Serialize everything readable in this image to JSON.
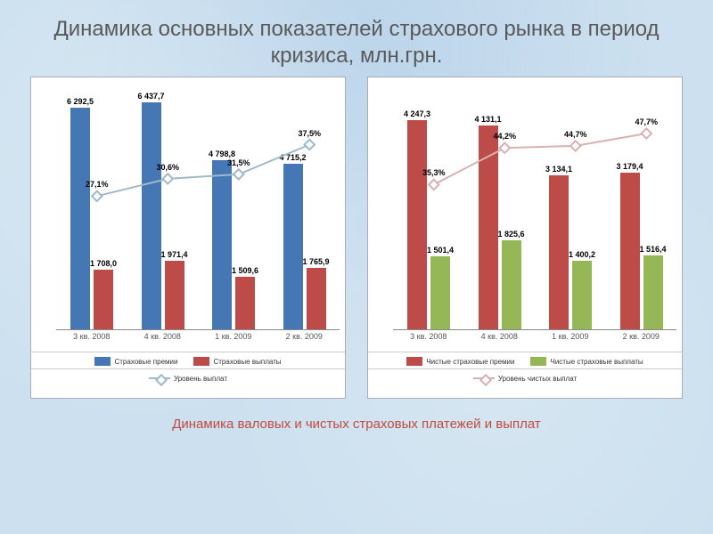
{
  "title": "Динамика основных показателей страхового рынка в период кризиса, млн.грн.",
  "caption": "Динамика валовых и чистых страховых платежей и выплат",
  "categories": [
    "3 кв. 2008",
    "4 кв. 2008",
    "1 кв. 2009",
    "2 кв. 2009"
  ],
  "chart_style": {
    "background": "#ffffff",
    "label_fontsize": 9,
    "title_fontsize": 24,
    "title_color": "#595959",
    "caption_color": "#c24a3f",
    "axis_color": "#888888"
  },
  "chartA": {
    "type": "bar+line",
    "y_max": 7000,
    "line_y_max": 50,
    "series": [
      {
        "name": "Страховые премии",
        "color": "#4577b4",
        "values": [
          6292.5,
          6437.7,
          4798.8,
          4715.2
        ],
        "value_labels": [
          "6 292,5",
          "6 437,7",
          "4 798,8",
          "4 715,2"
        ]
      },
      {
        "name": "Страховые выплаты",
        "color": "#bd4b48",
        "values": [
          1708.0,
          1971.4,
          1509.6,
          1765.9
        ],
        "value_labels": [
          "1 708,0",
          "1 971,4",
          "1 509,6",
          "1 765,9"
        ]
      }
    ],
    "line": {
      "name": "Уровень выплат",
      "color": "#9fb9c9",
      "values": [
        27.1,
        30.6,
        31.5,
        37.5
      ],
      "value_labels": [
        "27,1%",
        "30,6%",
        "31,5%",
        "37,5%"
      ]
    }
  },
  "chartB": {
    "type": "bar+line",
    "y_max": 5000,
    "line_y_max": 60,
    "series": [
      {
        "name": "Чистые страховые премии",
        "color": "#bd4b48",
        "values": [
          4247.3,
          4131.1,
          3134.1,
          3179.4
        ],
        "value_labels": [
          "4 247,3",
          "4 131,1",
          "3 134,1",
          "3 179,4"
        ]
      },
      {
        "name": "Чистые страховые выплаты",
        "color": "#95b755",
        "values": [
          1501.4,
          1825.6,
          1400.2,
          1516.4
        ],
        "value_labels": [
          "1 501,4",
          "1 825,6",
          "1 400,2",
          "1 516,4"
        ]
      }
    ],
    "line": {
      "name": "Уровень чистых выплат",
      "color": "#d9b1b0",
      "values": [
        35.3,
        44.2,
        44.7,
        47.7
      ],
      "value_labels": [
        "35,3%",
        "44,2%",
        "44,7%",
        "47,7%"
      ]
    }
  }
}
